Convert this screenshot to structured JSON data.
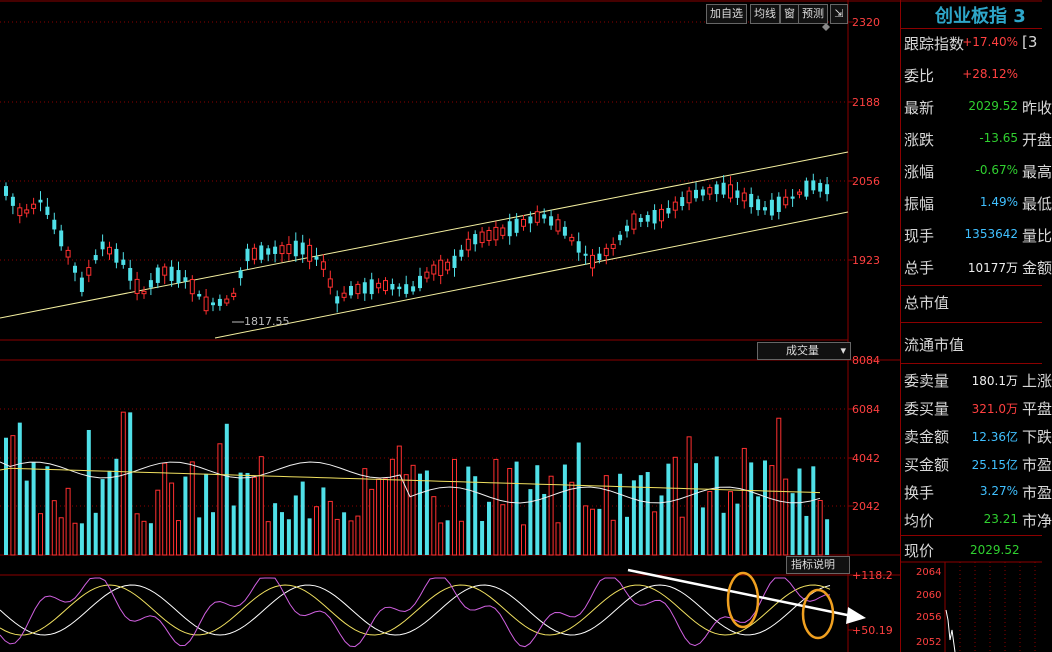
{
  "toolbar": {
    "add_watch": "加自选",
    "ma_lines": "均线",
    "window": "窗",
    "forecast": "预测",
    "expand_icon": "expand-icon"
  },
  "axes": {
    "price_ticks": [
      "2320",
      "2188",
      "2056",
      "1923"
    ],
    "volume_ticks": [
      "8084",
      "6084",
      "4042",
      "2042"
    ],
    "indicator_ticks": [
      "+118.2",
      "+50.19"
    ],
    "low_label": "1817.55"
  },
  "volume_panel": {
    "label": "成交量",
    "dropdown_icon": "chevron-down-icon"
  },
  "indicator_panel": {
    "label": "指标说明"
  },
  "quote": {
    "title": "创业板指 3",
    "rows": [
      {
        "label": "跟踪指数",
        "value": "+17.40%",
        "trail": "[3",
        "color": "#ff4040"
      },
      {
        "label": "委比",
        "value": "+28.12%",
        "trail": "",
        "color": "#ff4040"
      },
      {
        "label": "最新",
        "value": "2029.52",
        "trail": "昨收",
        "color": "#30d030"
      },
      {
        "label": "涨跌",
        "value": "-13.65",
        "trail": "开盘",
        "color": "#30d030"
      },
      {
        "label": "涨幅",
        "value": "-0.67%",
        "trail": "最高",
        "color": "#30d030"
      },
      {
        "label": "振幅",
        "value": "1.49%",
        "trail": "最低",
        "color": "#40c0ff"
      },
      {
        "label": "现手",
        "value": "1353642",
        "trail": "量比",
        "color": "#40c0ff"
      },
      {
        "label": "总手",
        "value": "10177万",
        "trail": "金额",
        "color": "#eeeeee"
      }
    ],
    "market_cap": "总市值",
    "float_cap": "流通市值",
    "rows2": [
      {
        "label": "委卖量",
        "value": "180.1万",
        "trail": "上涨",
        "color": "#eeeeee"
      },
      {
        "label": "委买量",
        "value": "321.0万",
        "trail": "平盘",
        "color": "#ff4040"
      },
      {
        "label": "卖金额",
        "value": "12.36亿",
        "trail": "下跌",
        "color": "#40c0ff"
      },
      {
        "label": "买金额",
        "value": "25.15亿",
        "trail": "市盈",
        "color": "#40c0ff"
      },
      {
        "label": "换手",
        "value": "3.27%",
        "trail": "市盈",
        "color": "#40c0ff"
      },
      {
        "label": "均价",
        "value": "23.21",
        "trail": "市净",
        "color": "#30d030"
      }
    ],
    "current_label": "现价",
    "current_value": "2029.52",
    "mini_ticks": [
      "2064",
      "2060",
      "2056",
      "2052"
    ]
  }
}
